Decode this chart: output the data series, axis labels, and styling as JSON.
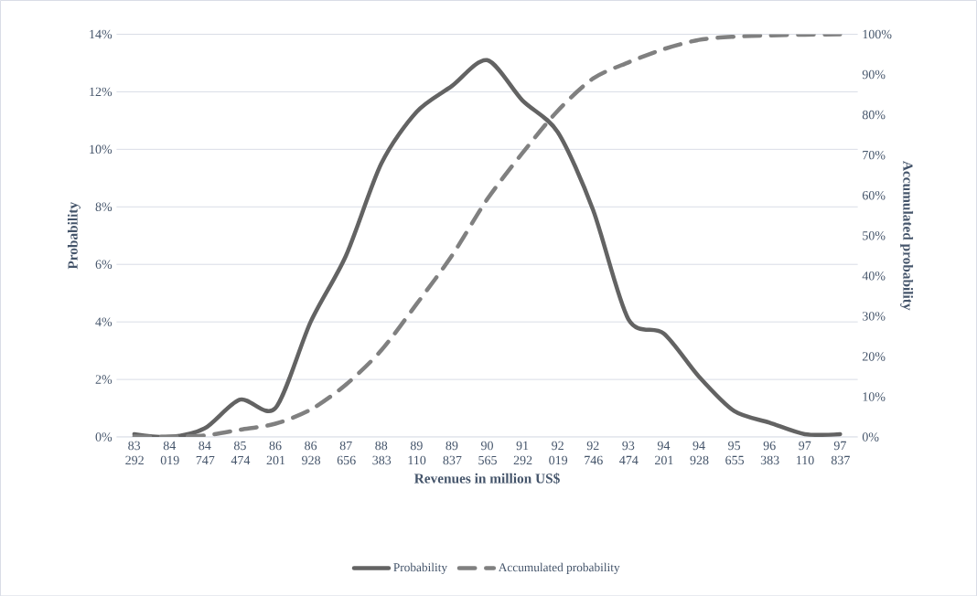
{
  "chart_data": {
    "type": "line",
    "categories": [
      "83 292",
      "84 019",
      "84 747",
      "85 474",
      "86 201",
      "86 928",
      "87 656",
      "88 383",
      "89 110",
      "89 837",
      "90 565",
      "91 292",
      "92 019",
      "92 746",
      "93 474",
      "94 201",
      "94 928",
      "95 655",
      "96 383",
      "97 110",
      "97 837"
    ],
    "series": [
      {
        "name": "Probability",
        "color": "#636363",
        "line_style": "solid",
        "values": [
          0.1,
          0.0,
          0.3,
          1.3,
          1.0,
          4.0,
          6.3,
          9.5,
          11.3,
          12.2,
          13.1,
          11.7,
          10.6,
          7.9,
          4.1,
          3.6,
          2.1,
          0.9,
          0.5,
          0.1,
          0.1
        ]
      },
      {
        "name": "Accumulated probability",
        "color": "#808080",
        "line_style": "dashed",
        "axis": "y2",
        "values": [
          0.1,
          0.1,
          0.4,
          1.8,
          3.3,
          6.8,
          13,
          21.5,
          33,
          45,
          59,
          70.5,
          81,
          89,
          93,
          96.3,
          98.6,
          99.4,
          99.7,
          99.9,
          100
        ]
      }
    ],
    "xlabel": "Revenues in million US$",
    "ylabel": "Probability",
    "y2label": "Accumulated probability",
    "ylim": [
      0,
      14
    ],
    "yticks": [
      {
        "value": 0,
        "label": "0%"
      },
      {
        "value": 2,
        "label": "2%"
      },
      {
        "value": 4,
        "label": "4%"
      },
      {
        "value": 6,
        "label": "6%"
      },
      {
        "value": 8,
        "label": "8%"
      },
      {
        "value": 10,
        "label": "10%"
      },
      {
        "value": 12,
        "label": "12%"
      },
      {
        "value": 14,
        "label": "14%"
      }
    ],
    "y2lim": [
      0,
      100
    ],
    "y2ticks": [
      {
        "value": 0,
        "label": "0%"
      },
      {
        "value": 10,
        "label": "10%"
      },
      {
        "value": 20,
        "label": "20%"
      },
      {
        "value": 30,
        "label": "30%"
      },
      {
        "value": 40,
        "label": "40%"
      },
      {
        "value": 50,
        "label": "50%"
      },
      {
        "value": 60,
        "label": "60%"
      },
      {
        "value": 70,
        "label": "70%"
      },
      {
        "value": 80,
        "label": "80%"
      },
      {
        "value": 90,
        "label": "90%"
      },
      {
        "value": 100,
        "label": "100%"
      }
    ],
    "grid": "y",
    "legend": "bottom"
  }
}
